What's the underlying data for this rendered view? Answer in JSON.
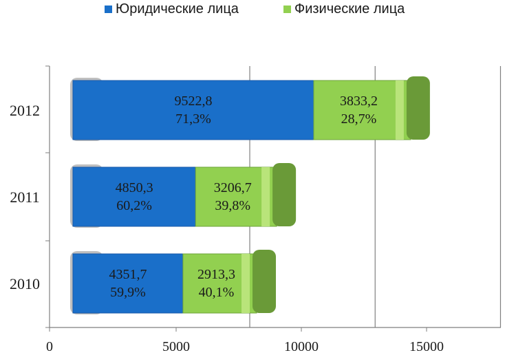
{
  "chart_data": {
    "type": "bar",
    "orientation": "horizontal",
    "stacked": true,
    "categories": [
      "2010",
      "2011",
      "2012"
    ],
    "series": [
      {
        "name": "Юридические лица",
        "values": [
          4351.7,
          4850.3,
          9522.8
        ],
        "percent_labels": [
          "59,9%",
          "60,2%",
          "71,3%"
        ],
        "value_labels": [
          "4351,7",
          "4850,3",
          "9522,8"
        ],
        "color": "#1a6fc9"
      },
      {
        "name": "Физические лица",
        "values": [
          2913.3,
          3206.7,
          3833.2
        ],
        "percent_labels": [
          "40,1%",
          "39,8%",
          "28,7%"
        ],
        "value_labels": [
          "2913,3",
          "3206,7",
          "3833,2"
        ],
        "color": "#92d050"
      }
    ],
    "xlim": [
      0,
      18000
    ],
    "xticks": [
      "0",
      "5000",
      "10000",
      "15000"
    ],
    "xtick_values": [
      0,
      5000,
      10000,
      15000
    ],
    "grid": "vertical",
    "legend_position": "top"
  }
}
